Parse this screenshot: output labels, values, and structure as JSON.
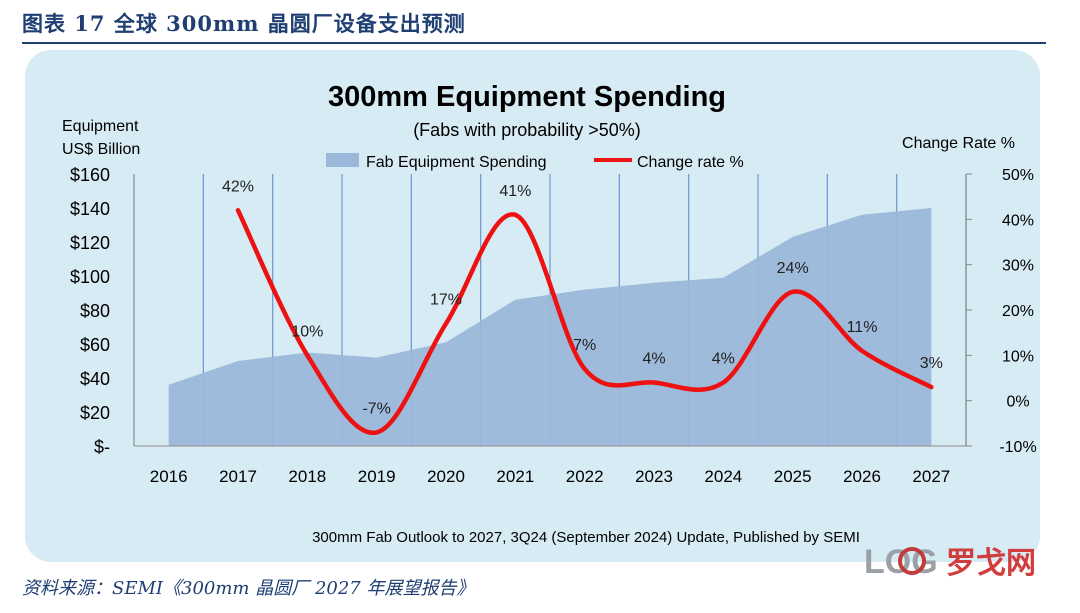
{
  "figure_caption": "图表 17   全球 300mm 晶圆厂设备支出预测",
  "source": "资料来源：SEMI《300mm 晶圆厂 2027 年展望报告》",
  "watermark": "LOG 罗戈网",
  "chart_data": {
    "type": "area",
    "title": "300mm Equipment Spending",
    "subtitle": "(Fabs with probability >50%)",
    "ylabel": [
      "Equipment",
      "US$ Billion"
    ],
    "y2label": "Change Rate %",
    "footnote": "300mm Fab Outlook to 2027, 3Q24 (September 2024) Update, Published by SEMI",
    "categories": [
      "2016",
      "2017",
      "2018",
      "2019",
      "2020",
      "2021",
      "2022",
      "2023",
      "2024",
      "2025",
      "2026",
      "2027"
    ],
    "ylim": [
      0,
      160
    ],
    "y_ticks": [
      "$-",
      "$20",
      "$40",
      "$60",
      "$80",
      "$100",
      "$120",
      "$140",
      "$160"
    ],
    "y2lim": [
      -10,
      50
    ],
    "y2_ticks": [
      "-10%",
      "0%",
      "10%",
      "20%",
      "30%",
      "40%",
      "50%"
    ],
    "legend_position": "top",
    "grid": "vertical lines",
    "series": [
      {
        "name": "Fab Equipment Spending",
        "kind": "area",
        "color": "#9bb7d9",
        "values": [
          36,
          50,
          55,
          52,
          61,
          86,
          92,
          96,
          99,
          123,
          136,
          140
        ]
      },
      {
        "name": "Change rate %",
        "kind": "line",
        "color": "#ee1111",
        "values": [
          null,
          42,
          10,
          -7,
          17,
          41,
          7,
          4,
          4,
          24,
          11,
          3
        ],
        "labels": [
          "",
          "42%",
          "10%",
          "-7%",
          "17%",
          "41%",
          "7%",
          "4%",
          "4%",
          "24%",
          "11%",
          "3%"
        ]
      }
    ]
  }
}
